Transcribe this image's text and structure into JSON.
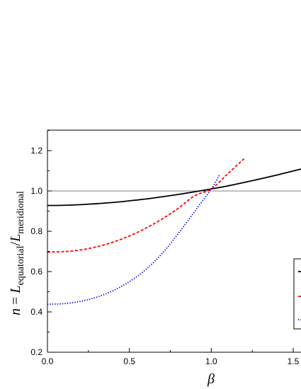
{
  "chart_data": {
    "type": "line",
    "xlabel": "β",
    "ylabel": {
      "lhs": "n",
      "eq": " = ",
      "num_sym": "L",
      "num_sub": "equatorial",
      "slash": "/",
      "den_sym": "L",
      "den_sub": "meridional"
    },
    "xlim": [
      0.0,
      1.6
    ],
    "ylim": [
      0.2,
      1.3
    ],
    "xticks": [
      "0.0",
      "0.5",
      "1.0",
      "1.5"
    ],
    "yticks": [
      "0.2",
      "0.4",
      "0.6",
      "0.8",
      "1.0",
      "1.2"
    ],
    "grid": false,
    "legend": "right (partially cropped, entries hidden)",
    "reference_line": {
      "y": 1.0,
      "color": "#808080"
    },
    "series": [
      {
        "color": "#000000",
        "style": "solid",
        "x": [
          0.0,
          0.1,
          0.2,
          0.3,
          0.4,
          0.5,
          0.6,
          0.7,
          0.8,
          0.9,
          1.0,
          1.1,
          1.2,
          1.3,
          1.4,
          1.5,
          1.6
        ],
        "y": [
          0.928,
          0.929,
          0.932,
          0.937,
          0.943,
          0.951,
          0.96,
          0.971,
          0.983,
          0.996,
          1.01,
          1.025,
          1.042,
          1.06,
          1.079,
          1.099,
          1.12
        ]
      },
      {
        "color": "#ff0000",
        "style": "dashed",
        "x": [
          0.0,
          0.1,
          0.2,
          0.3,
          0.4,
          0.5,
          0.6,
          0.7,
          0.8,
          0.9,
          1.0,
          1.1,
          1.2
        ],
        "y": [
          0.697,
          0.699,
          0.707,
          0.723,
          0.746,
          0.777,
          0.815,
          0.861,
          0.915,
          0.977,
          1.01,
          1.085,
          1.16
        ]
      },
      {
        "color": "#0000cc",
        "style": "dotted",
        "x": [
          0.0,
          0.1,
          0.2,
          0.3,
          0.4,
          0.5,
          0.6,
          0.7,
          0.8,
          0.9,
          1.0,
          1.05
        ],
        "y": [
          0.438,
          0.441,
          0.452,
          0.473,
          0.505,
          0.55,
          0.61,
          0.69,
          0.79,
          0.9,
          1.01,
          1.08
        ]
      }
    ]
  }
}
